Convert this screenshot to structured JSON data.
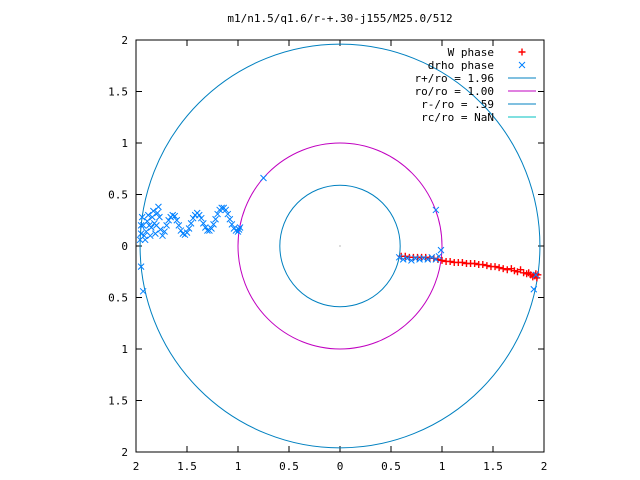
{
  "chart_data": {
    "type": "scatter",
    "title": "m1/n1.5/q1.6/r-+.30-j155/M25.0/512",
    "xlabel": "",
    "ylabel": "",
    "xlim": [
      -2,
      2
    ],
    "ylim": [
      -2,
      2
    ],
    "grid": false,
    "legend_position": "top-right",
    "x_ticks": [
      {
        "value": -2,
        "label": "2"
      },
      {
        "value": -1.5,
        "label": "1.5"
      },
      {
        "value": -1,
        "label": "1"
      },
      {
        "value": -0.5,
        "label": "0.5"
      },
      {
        "value": 0,
        "label": "0"
      },
      {
        "value": 0.5,
        "label": "0.5"
      },
      {
        "value": 1,
        "label": "1"
      },
      {
        "value": 1.5,
        "label": "1.5"
      },
      {
        "value": 2,
        "label": "2"
      }
    ],
    "y_ticks": [
      {
        "value": 2,
        "label": "2"
      },
      {
        "value": 1.5,
        "label": "1.5"
      },
      {
        "value": 1,
        "label": "1"
      },
      {
        "value": 0.5,
        "label": "0.5"
      },
      {
        "value": 0,
        "label": "0"
      },
      {
        "value": -0.5,
        "label": "0.5"
      },
      {
        "value": -1,
        "label": "1"
      },
      {
        "value": -1.5,
        "label": "1.5"
      },
      {
        "value": -2,
        "label": "2"
      }
    ],
    "legend": [
      {
        "label": "W phase",
        "marker": "plus",
        "color": "#ff0000"
      },
      {
        "label": "drho phase",
        "marker": "cross",
        "color": "#0080ff"
      },
      {
        "label": "r+/ro = 1.96",
        "marker": "line",
        "color": "#0080c0"
      },
      {
        "label": "ro/ro = 1.00",
        "marker": "line",
        "color": "#c000c0"
      },
      {
        "label": "r-/ro = .59",
        "marker": "line",
        "color": "#0080c0"
      },
      {
        "label": "rc/ro = NaN",
        "marker": "line",
        "color": "#00c0c0"
      }
    ],
    "circles": [
      {
        "name": "r+/ro",
        "radius": 1.96,
        "color": "#0080c0"
      },
      {
        "name": "ro/ro",
        "radius": 1.0,
        "color": "#c000c0"
      },
      {
        "name": "r-/ro",
        "radius": 0.59,
        "color": "#0080c0"
      }
    ],
    "center_point": {
      "x": 0,
      "y": 0
    },
    "w_phase": {
      "color": "#ff0000",
      "points": [
        [
          0.6,
          -0.1
        ],
        [
          0.64,
          -0.1
        ],
        [
          0.68,
          -0.11
        ],
        [
          0.72,
          -0.11
        ],
        [
          0.76,
          -0.11
        ],
        [
          0.8,
          -0.11
        ],
        [
          0.84,
          -0.11
        ],
        [
          0.88,
          -0.12
        ],
        [
          0.92,
          -0.12
        ],
        [
          0.96,
          -0.13
        ],
        [
          1.0,
          -0.14
        ],
        [
          1.04,
          -0.15
        ],
        [
          1.08,
          -0.15
        ],
        [
          1.12,
          -0.16
        ],
        [
          1.16,
          -0.16
        ],
        [
          1.2,
          -0.16
        ],
        [
          1.24,
          -0.17
        ],
        [
          1.28,
          -0.17
        ],
        [
          1.32,
          -0.17
        ],
        [
          1.36,
          -0.18
        ],
        [
          1.4,
          -0.18
        ],
        [
          1.44,
          -0.19
        ],
        [
          1.48,
          -0.2
        ],
        [
          1.52,
          -0.2
        ],
        [
          1.56,
          -0.21
        ],
        [
          1.6,
          -0.22
        ],
        [
          1.64,
          -0.23
        ],
        [
          1.68,
          -0.22
        ],
        [
          1.71,
          -0.24
        ],
        [
          1.74,
          -0.25
        ],
        [
          1.77,
          -0.23
        ],
        [
          1.8,
          -0.26
        ],
        [
          1.83,
          -0.27
        ],
        [
          1.85,
          -0.26
        ],
        [
          1.87,
          -0.28
        ],
        [
          1.89,
          -0.3
        ],
        [
          1.91,
          -0.29
        ],
        [
          1.92,
          -0.27
        ],
        [
          1.93,
          -0.31
        ],
        [
          1.94,
          -0.28
        ]
      ]
    },
    "drho_phase": {
      "color": "#0080ff",
      "points": [
        [
          -1.96,
          0.06
        ],
        [
          -1.95,
          0.12
        ],
        [
          -1.95,
          0.2
        ],
        [
          -1.94,
          0.28
        ],
        [
          -1.93,
          0.2
        ],
        [
          -1.92,
          0.1
        ],
        [
          -1.91,
          0.06
        ],
        [
          -1.9,
          0.14
        ],
        [
          -1.89,
          0.24
        ],
        [
          -1.88,
          0.3
        ],
        [
          -1.87,
          0.2
        ],
        [
          -1.86,
          0.1
        ],
        [
          -1.85,
          0.18
        ],
        [
          -1.84,
          0.28
        ],
        [
          -1.83,
          0.34
        ],
        [
          -1.82,
          0.22
        ],
        [
          -1.81,
          0.12
        ],
        [
          -1.8,
          0.2
        ],
        [
          -1.79,
          0.32
        ],
        [
          -1.78,
          0.38
        ],
        [
          -1.77,
          0.28
        ],
        [
          -1.76,
          0.16
        ],
        [
          -1.74,
          0.1
        ],
        [
          -1.72,
          0.14
        ],
        [
          -1.7,
          0.2
        ],
        [
          -1.68,
          0.25
        ],
        [
          -1.66,
          0.28
        ],
        [
          -1.64,
          0.3
        ],
        [
          -1.62,
          0.29
        ],
        [
          -1.6,
          0.25
        ],
        [
          -1.58,
          0.2
        ],
        [
          -1.56,
          0.15
        ],
        [
          -1.54,
          0.12
        ],
        [
          -1.52,
          0.11
        ],
        [
          -1.5,
          0.13
        ],
        [
          -1.48,
          0.17
        ],
        [
          -1.46,
          0.22
        ],
        [
          -1.44,
          0.27
        ],
        [
          -1.42,
          0.3
        ],
        [
          -1.4,
          0.32
        ],
        [
          -1.38,
          0.3
        ],
        [
          -1.36,
          0.27
        ],
        [
          -1.34,
          0.22
        ],
        [
          -1.32,
          0.18
        ],
        [
          -1.3,
          0.15
        ],
        [
          -1.28,
          0.15
        ],
        [
          -1.26,
          0.17
        ],
        [
          -1.24,
          0.21
        ],
        [
          -1.22,
          0.26
        ],
        [
          -1.2,
          0.31
        ],
        [
          -1.18,
          0.35
        ],
        [
          -1.16,
          0.37
        ],
        [
          -1.14,
          0.37
        ],
        [
          -1.12,
          0.35
        ],
        [
          -1.1,
          0.31
        ],
        [
          -1.08,
          0.26
        ],
        [
          -1.06,
          0.21
        ],
        [
          -1.04,
          0.17
        ],
        [
          -1.02,
          0.15
        ],
        [
          -1.0,
          0.14
        ],
        [
          -0.99,
          0.16
        ],
        [
          -0.98,
          0.18
        ],
        [
          0.58,
          -0.11
        ],
        [
          0.62,
          -0.13
        ],
        [
          0.66,
          -0.12
        ],
        [
          0.7,
          -0.14
        ],
        [
          0.74,
          -0.12
        ],
        [
          0.78,
          -0.13
        ],
        [
          0.82,
          -0.12
        ],
        [
          0.86,
          -0.13
        ],
        [
          0.9,
          -0.11
        ],
        [
          0.94,
          -0.13
        ],
        [
          0.97,
          -0.1
        ],
        [
          0.99,
          -0.04
        ],
        [
          -1.95,
          -0.2
        ],
        [
          -1.93,
          -0.44
        ],
        [
          -0.75,
          0.66
        ],
        [
          0.94,
          0.35
        ],
        [
          1.9,
          -0.42
        ],
        [
          1.92,
          -0.28
        ]
      ]
    }
  }
}
